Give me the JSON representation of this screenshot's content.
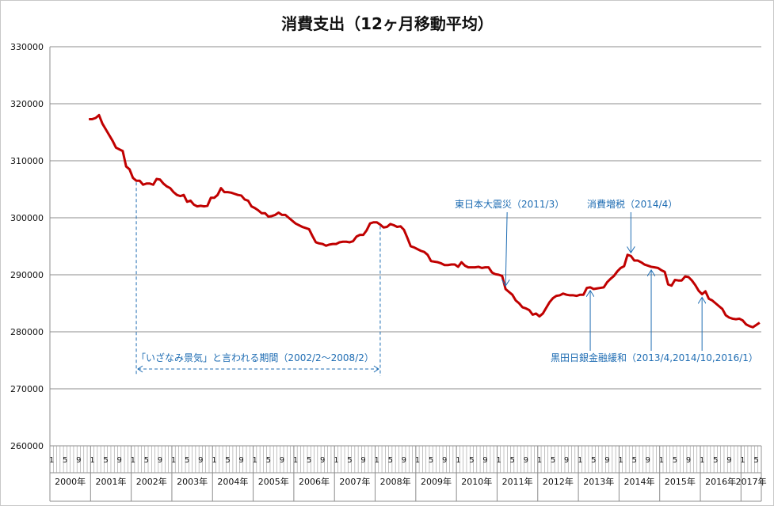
{
  "chart_data": {
    "type": "line",
    "title": "消費支出（12ヶ月移動平均）",
    "ylim": [
      260000,
      330000
    ],
    "yticks": [
      "260000",
      "270000",
      "280000",
      "290000",
      "300000",
      "310000",
      "320000",
      "330000"
    ],
    "x_start": "2000/1",
    "x_end": "2017/6",
    "month_tick_labels": [
      "1",
      "5",
      "9"
    ],
    "year_labels": [
      "2000年",
      "2001年",
      "2002年",
      "2003年",
      "2004年",
      "2005年",
      "2006年",
      "2007年",
      "2008年",
      "2009年",
      "2010年",
      "2011年",
      "2012年",
      "2013年",
      "2014年",
      "2015年",
      "2016年",
      "2017年"
    ],
    "grid": true,
    "series": [
      {
        "color": "#c00000",
        "points": [
          [
            "2000/12",
            317300
          ],
          [
            "2001/1",
            317300
          ],
          [
            "2001/2",
            317500
          ],
          [
            "2001/3",
            318000
          ],
          [
            "2001/4",
            316500
          ],
          [
            "2001/5",
            315500
          ],
          [
            "2001/6",
            314500
          ],
          [
            "2001/7",
            313500
          ],
          [
            "2001/8",
            312300
          ],
          [
            "2001/9",
            312000
          ],
          [
            "2001/10",
            311700
          ],
          [
            "2001/11",
            309000
          ],
          [
            "2001/12",
            308500
          ],
          [
            "2002/1",
            307000
          ],
          [
            "2002/2",
            306500
          ],
          [
            "2002/3",
            306500
          ],
          [
            "2002/4",
            305800
          ],
          [
            "2002/5",
            306000
          ],
          [
            "2002/6",
            306000
          ],
          [
            "2002/7",
            305800
          ],
          [
            "2002/8",
            306800
          ],
          [
            "2002/9",
            306700
          ],
          [
            "2002/10",
            306000
          ],
          [
            "2002/11",
            305500
          ],
          [
            "2002/12",
            305200
          ],
          [
            "2003/1",
            304500
          ],
          [
            "2003/2",
            304000
          ],
          [
            "2003/3",
            303800
          ],
          [
            "2003/4",
            304000
          ],
          [
            "2003/5",
            302800
          ],
          [
            "2003/6",
            303000
          ],
          [
            "2003/7",
            302300
          ],
          [
            "2003/8",
            302000
          ],
          [
            "2003/9",
            302100
          ],
          [
            "2003/10",
            302000
          ],
          [
            "2003/11",
            302100
          ],
          [
            "2003/12",
            303500
          ],
          [
            "2004/1",
            303500
          ],
          [
            "2004/2",
            304000
          ],
          [
            "2004/3",
            305200
          ],
          [
            "2004/4",
            304500
          ],
          [
            "2004/5",
            304500
          ],
          [
            "2004/6",
            304400
          ],
          [
            "2004/7",
            304200
          ],
          [
            "2004/8",
            304000
          ],
          [
            "2004/9",
            303900
          ],
          [
            "2004/10",
            303200
          ],
          [
            "2004/11",
            303000
          ],
          [
            "2004/12",
            302000
          ],
          [
            "2005/1",
            301700
          ],
          [
            "2005/2",
            301300
          ],
          [
            "2005/3",
            300800
          ],
          [
            "2005/4",
            300800
          ],
          [
            "2005/5",
            300200
          ],
          [
            "2005/6",
            300300
          ],
          [
            "2005/7",
            300500
          ],
          [
            "2005/8",
            300900
          ],
          [
            "2005/9",
            300500
          ],
          [
            "2005/10",
            300500
          ],
          [
            "2005/11",
            300000
          ],
          [
            "2005/12",
            299500
          ],
          [
            "2006/1",
            299000
          ],
          [
            "2006/2",
            298700
          ],
          [
            "2006/3",
            298400
          ],
          [
            "2006/4",
            298200
          ],
          [
            "2006/5",
            298000
          ],
          [
            "2006/6",
            296800
          ],
          [
            "2006/7",
            295700
          ],
          [
            "2006/8",
            295500
          ],
          [
            "2006/9",
            295400
          ],
          [
            "2006/10",
            295100
          ],
          [
            "2006/11",
            295300
          ],
          [
            "2006/12",
            295400
          ],
          [
            "2007/1",
            295400
          ],
          [
            "2007/2",
            295700
          ],
          [
            "2007/3",
            295800
          ],
          [
            "2007/4",
            295800
          ],
          [
            "2007/5",
            295700
          ],
          [
            "2007/6",
            295900
          ],
          [
            "2007/7",
            296700
          ],
          [
            "2007/8",
            297000
          ],
          [
            "2007/9",
            297000
          ],
          [
            "2007/10",
            297800
          ],
          [
            "2007/11",
            299000
          ],
          [
            "2007/12",
            299200
          ],
          [
            "2008/1",
            299200
          ],
          [
            "2008/2",
            298800
          ],
          [
            "2008/3",
            298300
          ],
          [
            "2008/4",
            298400
          ],
          [
            "2008/5",
            298900
          ],
          [
            "2008/6",
            298700
          ],
          [
            "2008/7",
            298400
          ],
          [
            "2008/8",
            298500
          ],
          [
            "2008/9",
            297900
          ],
          [
            "2008/10",
            296500
          ],
          [
            "2008/11",
            295000
          ],
          [
            "2008/12",
            294800
          ],
          [
            "2009/1",
            294500
          ],
          [
            "2009/2",
            294200
          ],
          [
            "2009/3",
            294000
          ],
          [
            "2009/4",
            293500
          ],
          [
            "2009/5",
            292400
          ],
          [
            "2009/6",
            292300
          ],
          [
            "2009/7",
            292200
          ],
          [
            "2009/8",
            292000
          ],
          [
            "2009/9",
            291700
          ],
          [
            "2009/10",
            291700
          ],
          [
            "2009/11",
            291800
          ],
          [
            "2009/12",
            291800
          ],
          [
            "2010/1",
            291400
          ],
          [
            "2010/2",
            292200
          ],
          [
            "2010/3",
            291600
          ],
          [
            "2010/4",
            291300
          ],
          [
            "2010/5",
            291300
          ],
          [
            "2010/6",
            291300
          ],
          [
            "2010/7",
            291400
          ],
          [
            "2010/8",
            291200
          ],
          [
            "2010/9",
            291300
          ],
          [
            "2010/10",
            291300
          ],
          [
            "2010/11",
            290400
          ],
          [
            "2010/12",
            290100
          ],
          [
            "2011/1",
            290000
          ],
          [
            "2011/2",
            289800
          ],
          [
            "2011/3",
            287500
          ],
          [
            "2011/4",
            287000
          ],
          [
            "2011/5",
            286500
          ],
          [
            "2011/6",
            285500
          ],
          [
            "2011/7",
            285000
          ],
          [
            "2011/8",
            284300
          ],
          [
            "2011/9",
            284100
          ],
          [
            "2011/10",
            283800
          ],
          [
            "2011/11",
            283000
          ],
          [
            "2011/12",
            283200
          ],
          [
            "2012/1",
            282700
          ],
          [
            "2012/2",
            283200
          ],
          [
            "2012/3",
            284200
          ],
          [
            "2012/4",
            285200
          ],
          [
            "2012/5",
            285900
          ],
          [
            "2012/6",
            286300
          ],
          [
            "2012/7",
            286400
          ],
          [
            "2012/8",
            286700
          ],
          [
            "2012/9",
            286500
          ],
          [
            "2012/10",
            286400
          ],
          [
            "2012/11",
            286400
          ],
          [
            "2012/12",
            286300
          ],
          [
            "2013/1",
            286500
          ],
          [
            "2013/2",
            286500
          ],
          [
            "2013/3",
            287700
          ],
          [
            "2013/4",
            287800
          ],
          [
            "2013/5",
            287500
          ],
          [
            "2013/6",
            287600
          ],
          [
            "2013/7",
            287700
          ],
          [
            "2013/8",
            287800
          ],
          [
            "2013/9",
            288700
          ],
          [
            "2013/10",
            289300
          ],
          [
            "2013/11",
            289800
          ],
          [
            "2013/12",
            290600
          ],
          [
            "2014/1",
            291200
          ],
          [
            "2014/2",
            291500
          ],
          [
            "2014/3",
            293500
          ],
          [
            "2014/4",
            293300
          ],
          [
            "2014/5",
            292500
          ],
          [
            "2014/6",
            292500
          ],
          [
            "2014/7",
            292200
          ],
          [
            "2014/8",
            291800
          ],
          [
            "2014/9",
            291600
          ],
          [
            "2014/10",
            291400
          ],
          [
            "2014/11",
            291300
          ],
          [
            "2014/12",
            291200
          ],
          [
            "2015/1",
            290800
          ],
          [
            "2015/2",
            290500
          ],
          [
            "2015/3",
            288300
          ],
          [
            "2015/4",
            288100
          ],
          [
            "2015/5",
            289100
          ],
          [
            "2015/6",
            289000
          ],
          [
            "2015/7",
            289000
          ],
          [
            "2015/8",
            289700
          ],
          [
            "2015/9",
            289600
          ],
          [
            "2015/10",
            289000
          ],
          [
            "2015/11",
            288200
          ],
          [
            "2015/12",
            287200
          ],
          [
            "2016/1",
            286600
          ],
          [
            "2016/2",
            287100
          ],
          [
            "2016/3",
            285800
          ],
          [
            "2016/4",
            285500
          ],
          [
            "2016/5",
            285000
          ],
          [
            "2016/6",
            284500
          ],
          [
            "2016/7",
            284000
          ],
          [
            "2016/8",
            282900
          ],
          [
            "2016/9",
            282500
          ],
          [
            "2016/10",
            282300
          ],
          [
            "2016/11",
            282200
          ],
          [
            "2016/12",
            282300
          ],
          [
            "2017/1",
            282000
          ],
          [
            "2017/2",
            281300
          ],
          [
            "2017/3",
            281000
          ],
          [
            "2017/4",
            280800
          ],
          [
            "2017/5",
            281200
          ],
          [
            "2017/6",
            281600
          ]
        ]
      }
    ],
    "annotations": [
      {
        "text": "「いざなみ景気」と言われる期間（2002/2～2008/2）",
        "from": "2002/2",
        "to": "2008/2"
      },
      {
        "text": "東日本大震災（2011/3）",
        "target": "2011/3"
      },
      {
        "text": "消費増税（2014/4）",
        "target": "2014/4"
      },
      {
        "text": "黒田日銀金融緩和（2013/4,2014/10,2016/1）",
        "targets": [
          "2013/4",
          "2014/10",
          "2016/1"
        ]
      }
    ]
  }
}
